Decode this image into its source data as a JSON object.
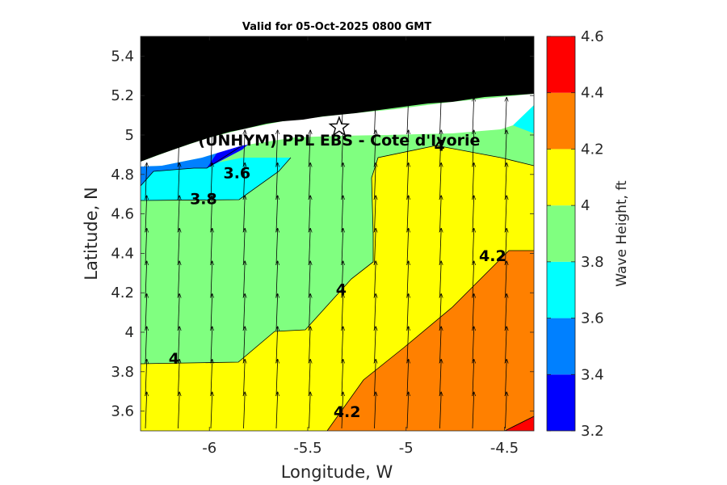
{
  "chart_data": {
    "type": "heatmap",
    "subtype": "filled-contour-with-quiver",
    "title": "Valid for 05-Oct-2025 0800 GMT",
    "xlabel": "Longitude, W",
    "ylabel": "Latitude, N",
    "colorbar_label": "Wave Height, ft",
    "xlim": [
      -6.35,
      -4.35
    ],
    "ylim": [
      3.5,
      5.5
    ],
    "x_ticks": [
      -6,
      -5.5,
      -5,
      -4.5
    ],
    "x_tick_labels": [
      "-6",
      "-5.5",
      "-5",
      "-4.5"
    ],
    "y_ticks": [
      3.6,
      3.8,
      4.0,
      4.2,
      4.4,
      4.6,
      4.8,
      5.0,
      5.2,
      5.4
    ],
    "y_tick_labels": [
      "3.6",
      "3.8",
      "4",
      "4.2",
      "4.4",
      "4.6",
      "4.8",
      "5",
      "5.2",
      "5.4"
    ],
    "colorbar_ticks": [
      "3.2",
      "3.4",
      "3.6",
      "3.8",
      "4",
      "4.2",
      "4.4",
      "4.6"
    ],
    "levels": [
      3.2,
      3.4,
      3.6,
      3.8,
      4.0,
      4.2,
      4.4,
      4.6
    ],
    "level_colors": [
      "#0000ff",
      "#0080ff",
      "#00ffff",
      "#80ff80",
      "#ffff00",
      "#ff8000",
      "#ff0000"
    ],
    "land_color": "#000000",
    "contour_labels": [
      {
        "text": "3.6",
        "lon": -5.86,
        "lat": 4.78
      },
      {
        "text": "3.8",
        "lon": -6.03,
        "lat": 4.65
      },
      {
        "text": "4",
        "lon": -6.18,
        "lat": 3.84
      },
      {
        "text": "4",
        "lon": -5.33,
        "lat": 4.19
      },
      {
        "text": "4",
        "lon": -4.83,
        "lat": 4.92
      },
      {
        "text": "4.2",
        "lon": -4.56,
        "lat": 4.36
      },
      {
        "text": "4.2",
        "lon": -5.3,
        "lat": 3.57
      }
    ],
    "site": {
      "label": "(UNHYM) PPL EBS  - Cote d'Ivorie",
      "lon": -5.34,
      "lat": 5.04
    },
    "wave_direction_note": "arrows point north-northeast"
  }
}
